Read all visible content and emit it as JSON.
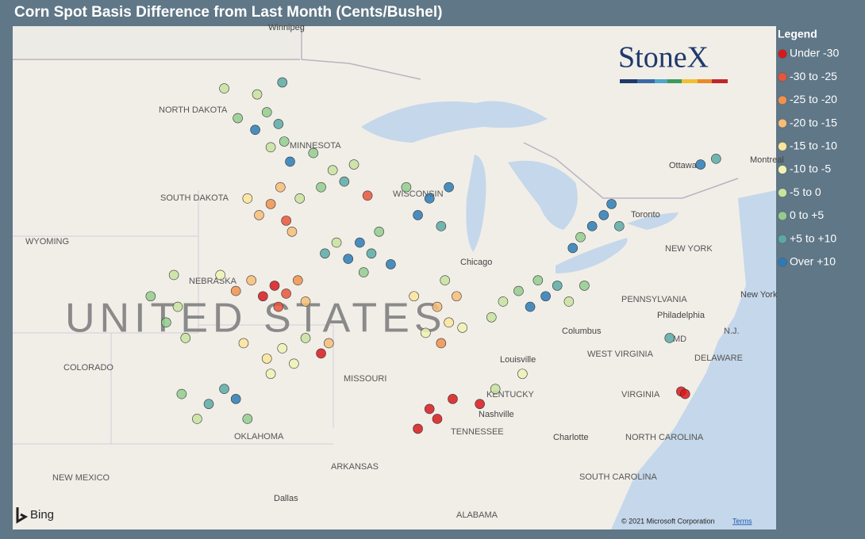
{
  "title": "Corn Spot Basis Difference from Last Month (Cents/Bushel)",
  "logo": "StoneX",
  "legend": {
    "title": "Legend",
    "items": [
      {
        "label": "Under -30",
        "color": "#d7191c"
      },
      {
        "label": "-30 to -25",
        "color": "#e8553a"
      },
      {
        "label": "-25 to -20",
        "color": "#f0914e"
      },
      {
        "label": "-20 to -15",
        "color": "#f7bd78"
      },
      {
        "label": "-15 to -10",
        "color": "#fbe59a"
      },
      {
        "label": "-10 to -5",
        "color": "#eef2b4"
      },
      {
        "label": "-5 to 0",
        "color": "#c8e2a0"
      },
      {
        "label": "0 to +5",
        "color": "#94cc8e"
      },
      {
        "label": "+5 to +10",
        "color": "#5aa9a6"
      },
      {
        "label": "Over +10",
        "color": "#2c7bb6"
      }
    ]
  },
  "map_labels": [
    "Winnipeg",
    "NORTH DAKOTA",
    "MINNESOTA",
    "SOUTH DAKOTA",
    "WISCONSIN",
    "WYOMING",
    "Chicago",
    "NEBRASKA",
    "UNITED STATES",
    "COLORADO",
    "MISSOURI",
    "Columbus",
    "Louisville",
    "WEST VIRGINIA",
    "KENTUCKY",
    "VIRGINIA",
    "Nashville",
    "TENNESSEE",
    "OKLAHOMA",
    "Charlotte",
    "NORTH CAROLINA",
    "ARKANSAS",
    "NEW MEXICO",
    "SOUTH CAROLINA",
    "Dallas",
    "ALABAMA",
    "NEW YORK",
    "PENNSYLVANIA",
    "Philadelphia",
    "Toronto",
    "Ottawa",
    "Montreal",
    "New York",
    "MD",
    "DELAWARE",
    "N.J."
  ],
  "points": [
    [
      -98.5,
      47.8,
      6
    ],
    [
      -98.0,
      47.2,
      7
    ],
    [
      -97.4,
      46.8,
      8
    ],
    [
      -97.1,
      46.2,
      7
    ],
    [
      -97.8,
      46.0,
      6
    ],
    [
      -98.6,
      46.6,
      9
    ],
    [
      -99.5,
      47.0,
      7
    ],
    [
      -100.2,
      48.0,
      6
    ],
    [
      -97.2,
      48.2,
      8
    ],
    [
      -96.8,
      45.5,
      9
    ],
    [
      -97.3,
      44.6,
      3
    ],
    [
      -97.8,
      44.0,
      2
    ],
    [
      -98.4,
      43.6,
      3
    ],
    [
      -97.0,
      43.4,
      1
    ],
    [
      -96.7,
      43.0,
      3
    ],
    [
      -99.0,
      44.2,
      4
    ],
    [
      -96.3,
      44.2,
      6
    ],
    [
      -94.6,
      45.2,
      6
    ],
    [
      -95.2,
      44.6,
      7
    ],
    [
      -94.0,
      44.8,
      8
    ],
    [
      -93.5,
      45.4,
      6
    ],
    [
      -95.6,
      45.8,
      7
    ],
    [
      -92.8,
      44.3,
      1
    ],
    [
      -93.2,
      42.6,
      9
    ],
    [
      -92.6,
      42.2,
      8
    ],
    [
      -93.8,
      42.0,
      9
    ],
    [
      -92.2,
      43.0,
      7
    ],
    [
      -94.4,
      42.6,
      6
    ],
    [
      -91.6,
      41.8,
      9
    ],
    [
      -93.0,
      41.5,
      7
    ],
    [
      -95.0,
      42.2,
      8
    ],
    [
      -90.2,
      43.6,
      9
    ],
    [
      -89.6,
      44.2,
      9
    ],
    [
      -89.0,
      43.2,
      8
    ],
    [
      -90.8,
      44.6,
      7
    ],
    [
      -88.6,
      44.6,
      9
    ],
    [
      -97.6,
      41.0,
      0
    ],
    [
      -97.0,
      40.7,
      1
    ],
    [
      -96.4,
      41.2,
      2
    ],
    [
      -98.2,
      40.6,
      0
    ],
    [
      -98.8,
      41.2,
      3
    ],
    [
      -99.6,
      40.8,
      2
    ],
    [
      -97.4,
      40.2,
      1
    ],
    [
      -96.0,
      40.4,
      3
    ],
    [
      -100.4,
      41.4,
      5
    ],
    [
      -97.2,
      38.6,
      5
    ],
    [
      -98.0,
      38.2,
      4
    ],
    [
      -96.6,
      38.0,
      5
    ],
    [
      -99.2,
      38.8,
      4
    ],
    [
      -97.8,
      37.6,
      5
    ],
    [
      -96.0,
      39.0,
      6
    ],
    [
      -95.2,
      38.4,
      0
    ],
    [
      -94.8,
      38.8,
      3
    ],
    [
      -89.2,
      40.2,
      3
    ],
    [
      -88.6,
      39.6,
      4
    ],
    [
      -89.8,
      39.2,
      5
    ],
    [
      -88.2,
      40.6,
      3
    ],
    [
      -90.4,
      40.6,
      4
    ],
    [
      -89.0,
      38.8,
      2
    ],
    [
      -88.8,
      41.2,
      6
    ],
    [
      -87.9,
      39.4,
      5
    ],
    [
      -85.8,
      40.4,
      6
    ],
    [
      -85.0,
      40.8,
      7
    ],
    [
      -84.4,
      40.2,
      9
    ],
    [
      -83.6,
      40.6,
      9
    ],
    [
      -84.0,
      41.2,
      7
    ],
    [
      -86.4,
      39.8,
      6
    ],
    [
      -83.0,
      41.0,
      8
    ],
    [
      -82.4,
      40.4,
      6
    ],
    [
      -81.6,
      41.0,
      7
    ],
    [
      -81.2,
      43.2,
      9
    ],
    [
      -80.6,
      43.6,
      9
    ],
    [
      -81.8,
      42.8,
      7
    ],
    [
      -80.2,
      44.0,
      9
    ],
    [
      -79.8,
      43.2,
      8
    ],
    [
      -82.2,
      42.4,
      9
    ],
    [
      -75.6,
      45.4,
      9
    ],
    [
      -74.8,
      45.6,
      8
    ],
    [
      -89.6,
      36.2,
      0
    ],
    [
      -89.2,
      35.8,
      0
    ],
    [
      -88.4,
      36.6,
      0
    ],
    [
      -87.0,
      36.4,
      0
    ],
    [
      -90.2,
      35.4,
      0
    ],
    [
      -100.2,
      37.0,
      8
    ],
    [
      -99.6,
      36.6,
      9
    ],
    [
      -101.0,
      36.4,
      8
    ],
    [
      -99.0,
      35.8,
      7
    ],
    [
      -101.6,
      35.8,
      6
    ],
    [
      -102.4,
      36.8,
      7
    ],
    [
      -102.6,
      40.2,
      6
    ],
    [
      -103.2,
      39.6,
      7
    ],
    [
      -102.2,
      39.0,
      6
    ],
    [
      -104.0,
      40.6,
      7
    ],
    [
      -102.8,
      41.4,
      6
    ],
    [
      -76.6,
      36.9,
      0
    ],
    [
      -76.4,
      36.8,
      0
    ],
    [
      -77.2,
      39.0,
      8
    ],
    [
      -84.8,
      37.6,
      5
    ],
    [
      -86.2,
      37.0,
      6
    ]
  ],
  "bing": "Bing",
  "attribution": "© 2021 Microsoft Corporation",
  "terms": "Terms"
}
